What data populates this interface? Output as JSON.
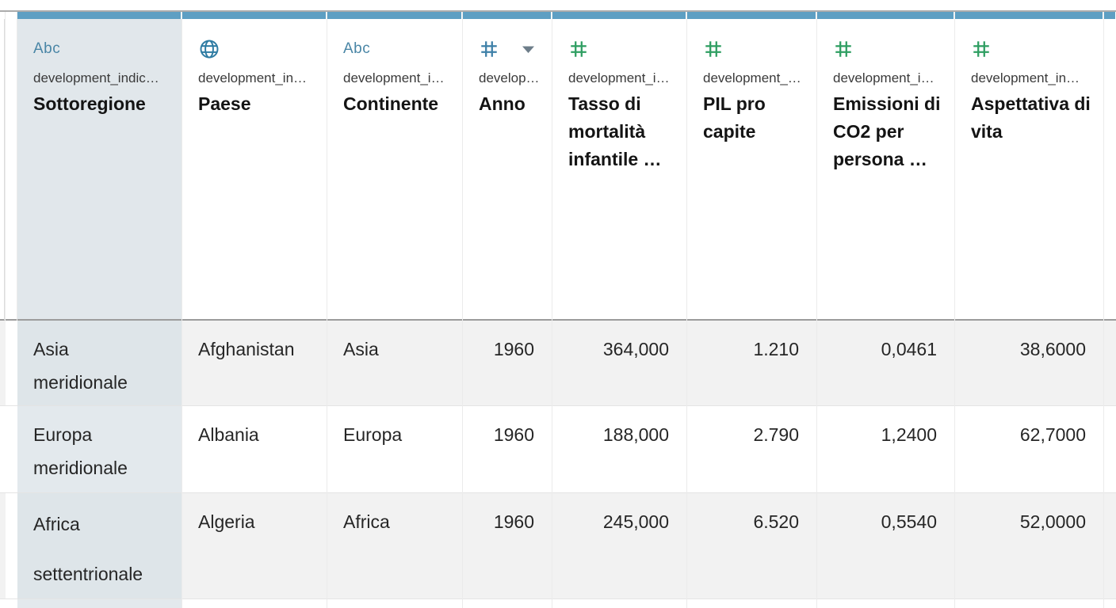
{
  "table": {
    "columns": [
      {
        "id": "sottoregione",
        "icon": "abc",
        "source": "development_indic…",
        "caption": "Sottoregione",
        "align": "left",
        "selected": true,
        "sorted": false
      },
      {
        "id": "paese",
        "icon": "globe",
        "source": "development_in…",
        "caption": "Paese",
        "align": "left",
        "selected": false,
        "sorted": false
      },
      {
        "id": "continente",
        "icon": "abc",
        "source": "development_i…",
        "caption": "Continente",
        "align": "left",
        "selected": false,
        "sorted": false
      },
      {
        "id": "anno",
        "icon": "hash-blue",
        "source": "develop…",
        "caption": "Anno",
        "align": "right",
        "selected": false,
        "sorted": true
      },
      {
        "id": "tasso-mortalita",
        "icon": "hash-green",
        "source": "development_i…",
        "caption": "Tasso di mortalità infantile …",
        "align": "right",
        "selected": false,
        "sorted": false
      },
      {
        "id": "pil-pro-capite",
        "icon": "hash-green",
        "source": "development_…",
        "caption": "PIL pro capite",
        "align": "right",
        "selected": false,
        "sorted": false
      },
      {
        "id": "emissioni-co2",
        "icon": "hash-green",
        "source": "development_i…",
        "caption": "Emissioni di CO2 per persona …",
        "align": "right",
        "selected": false,
        "sorted": false
      },
      {
        "id": "aspettativa-vita",
        "icon": "hash-green",
        "source": "development_in…",
        "caption": "Aspettativa di vita",
        "align": "right",
        "selected": false,
        "sorted": false
      }
    ],
    "rows": [
      [
        "Asia\nmeridionale",
        "Afghanistan",
        "Asia",
        "1960",
        "364,000",
        "1.210",
        "0,0461",
        "38,6000"
      ],
      [
        "Europa\nmeridionale",
        "Albania",
        "Europa",
        "1960",
        "188,000",
        "2.790",
        "1,2400",
        "62,7000"
      ],
      [
        "Africa\nsettentrionale",
        "Algeria",
        "Africa",
        "1960",
        "245,000",
        "6.520",
        "0,5540",
        "52,0000"
      ]
    ]
  },
  "colors": {
    "column_top_bar": "#5e9fc3",
    "type_icon_blue": "#3e80a8",
    "type_icon_green": "#2f9e62",
    "sort_caret": "#6d7d89",
    "selected_header_bg": "#e1e7eb",
    "selected_cell_bg_striped": "#dee5e9",
    "selected_cell_bg_plain": "#e3e9ed",
    "row_stripe_bg": "#f2f2f2",
    "row_plain_bg": "#ffffff"
  }
}
